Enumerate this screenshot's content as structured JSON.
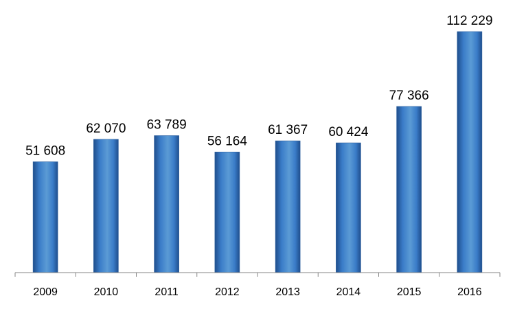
{
  "chart_data": {
    "type": "bar",
    "title": "",
    "xlabel": "",
    "ylabel": "",
    "categories": [
      "2009",
      "2010",
      "2011",
      "2012",
      "2013",
      "2014",
      "2015",
      "2016"
    ],
    "values": [
      51608,
      62070,
      63789,
      56164,
      61367,
      60424,
      77366,
      112229
    ],
    "data_labels": [
      "51 608",
      "62 070",
      "63 789",
      "56 164",
      "61 367",
      "60 424",
      "77 366",
      "112 229"
    ],
    "ylim": [
      0,
      125000
    ],
    "grid": false,
    "legend": "none",
    "colors": {
      "bar_light": "#5b9bd5",
      "bar_mid": "#3a7cc8",
      "bar_dark": "#1f4e8c",
      "axis": "#868686"
    }
  }
}
